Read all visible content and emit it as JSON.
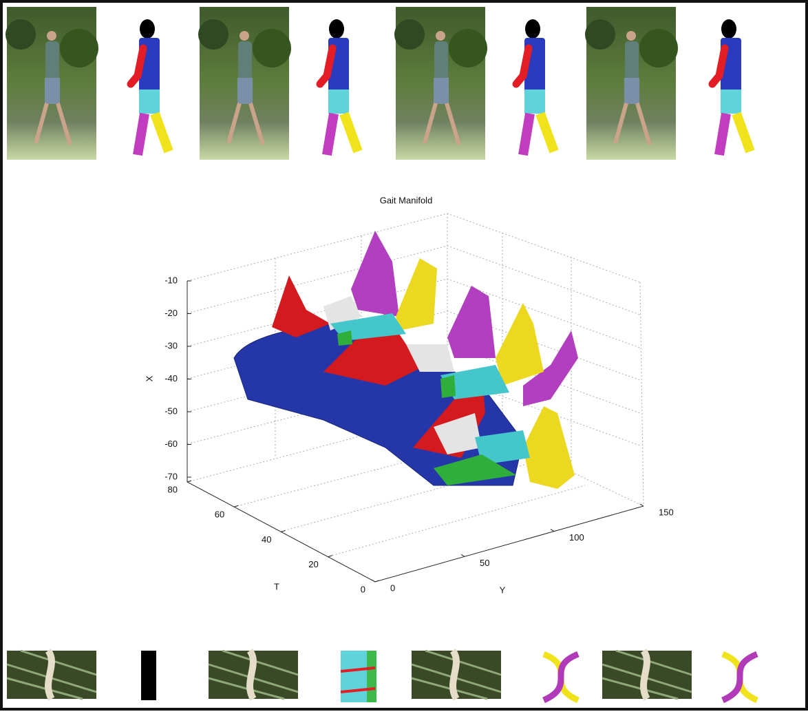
{
  "plot": {
    "title": "Gait Manifold",
    "x_label": "X",
    "x_ticks": [
      -10,
      -20,
      -30,
      -40,
      -50,
      -60,
      -70
    ],
    "t_label": "T",
    "t_ticks": [
      0,
      20,
      40,
      60,
      80
    ],
    "y_label": "Y",
    "y_ticks": [
      0,
      50,
      100,
      150
    ]
  }
}
